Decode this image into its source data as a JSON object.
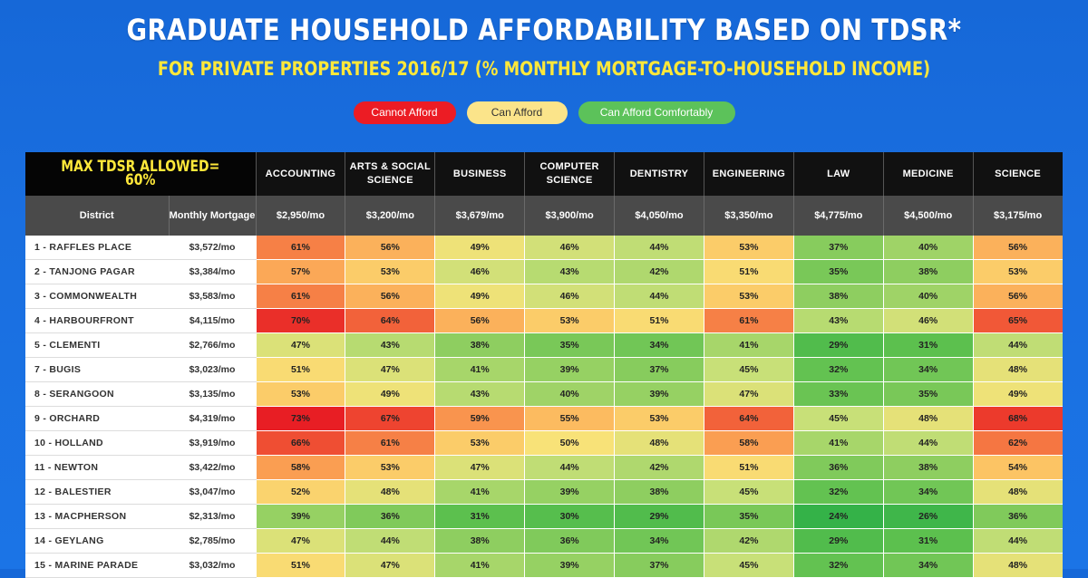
{
  "title": "GRADUATE HOUSEHOLD AFFORDABILITY BASED ON TDSR*",
  "subtitle": "FOR PRIVATE PROPERTIES 2016/17 (% MONTHLY MORTGAGE-TO-HOUSEHOLD INCOME)",
  "legend": {
    "cannot": "Cannot Afford",
    "can": "Can Afford",
    "comfortably": "Can Afford Comfortably"
  },
  "colors": {
    "cannot_afford": "#ec1c24",
    "can_afford": "#fbe48a",
    "can_afford_comfortably": "#5cc25a",
    "background": "#1a6fe0",
    "header": "#111111"
  },
  "table": {
    "max_tdsr_label": "MAX TDSR ALLOWED= 60%",
    "district_header": "District",
    "mortgage_header": "Monthly Mortgage",
    "courses": [
      {
        "name": "ACCOUNTING",
        "mortgage": "$2,950/mo"
      },
      {
        "name": "ARTS & SOCIAL SCIENCE",
        "mortgage": "$3,200/mo"
      },
      {
        "name": "BUSINESS",
        "mortgage": "$3,679/mo"
      },
      {
        "name": "COMPUTER SCIENCE",
        "mortgage": "$3,900/mo"
      },
      {
        "name": "DENTISTRY",
        "mortgage": "$4,050/mo"
      },
      {
        "name": "ENGINEERING",
        "mortgage": "$3,350/mo"
      },
      {
        "name": "LAW",
        "mortgage": "$4,775/mo"
      },
      {
        "name": "MEDICINE",
        "mortgage": "$4,500/mo"
      },
      {
        "name": "SCIENCE",
        "mortgage": "$3,175/mo"
      }
    ]
  },
  "chart_data": {
    "type": "heatmap",
    "title": "GRADUATE HOUSEHOLD AFFORDABILITY BASED ON TDSR*",
    "subtitle": "FOR PRIVATE PROPERTIES 2016/17 (% MONTHLY MORTGAGE-TO-HOUSEHOLD INCOME)",
    "columns": [
      "ACCOUNTING",
      "ARTS & SOCIAL SCIENCE",
      "BUSINESS",
      "COMPUTER SCIENCE",
      "DENTISTRY",
      "ENGINEERING",
      "LAW",
      "MEDICINE",
      "SCIENCE"
    ],
    "rows": [
      {
        "district": "1 - RAFFLES PLACE",
        "mortgage": "$3,572/mo",
        "values": [
          61,
          56,
          49,
          46,
          44,
          53,
          37,
          40,
          56
        ]
      },
      {
        "district": "2 - TANJONG PAGAR",
        "mortgage": "$3,384/mo",
        "values": [
          57,
          53,
          46,
          43,
          42,
          51,
          35,
          38,
          53
        ]
      },
      {
        "district": "3 - COMMONWEALTH",
        "mortgage": "$3,583/mo",
        "values": [
          61,
          56,
          49,
          46,
          44,
          53,
          38,
          40,
          56
        ]
      },
      {
        "district": "4 - HARBOURFRONT",
        "mortgage": "$4,115/mo",
        "values": [
          70,
          64,
          56,
          53,
          51,
          61,
          43,
          46,
          65
        ]
      },
      {
        "district": "5 - CLEMENTI",
        "mortgage": "$2,766/mo",
        "values": [
          47,
          43,
          38,
          35,
          34,
          41,
          29,
          31,
          44
        ]
      },
      {
        "district": "7 - BUGIS",
        "mortgage": "$3,023/mo",
        "values": [
          51,
          47,
          41,
          39,
          37,
          45,
          32,
          34,
          48
        ]
      },
      {
        "district": "8 - SERANGOON",
        "mortgage": "$3,135/mo",
        "values": [
          53,
          49,
          43,
          40,
          39,
          47,
          33,
          35,
          49
        ]
      },
      {
        "district": "9 - ORCHARD",
        "mortgage": "$4,319/mo",
        "values": [
          73,
          67,
          59,
          55,
          53,
          64,
          45,
          48,
          68
        ]
      },
      {
        "district": "10 - HOLLAND",
        "mortgage": "$3,919/mo",
        "values": [
          66,
          61,
          53,
          50,
          48,
          58,
          41,
          44,
          62
        ]
      },
      {
        "district": "11 - NEWTON",
        "mortgage": "$3,422/mo",
        "values": [
          58,
          53,
          47,
          44,
          42,
          51,
          36,
          38,
          54
        ]
      },
      {
        "district": "12 - BALESTIER",
        "mortgage": "$3,047/mo",
        "values": [
          52,
          48,
          41,
          39,
          38,
          45,
          32,
          34,
          48
        ]
      },
      {
        "district": "13 - MACPHERSON",
        "mortgage": "$2,313/mo",
        "values": [
          39,
          36,
          31,
          30,
          29,
          35,
          24,
          26,
          36
        ]
      },
      {
        "district": "14 - GEYLANG",
        "mortgage": "$2,785/mo",
        "values": [
          47,
          44,
          38,
          36,
          34,
          42,
          29,
          31,
          44
        ]
      },
      {
        "district": "15 - MARINE PARADE",
        "mortgage": "$3,032/mo",
        "values": [
          51,
          47,
          41,
          39,
          37,
          45,
          32,
          34,
          48
        ]
      }
    ],
    "value_unit": "%"
  }
}
